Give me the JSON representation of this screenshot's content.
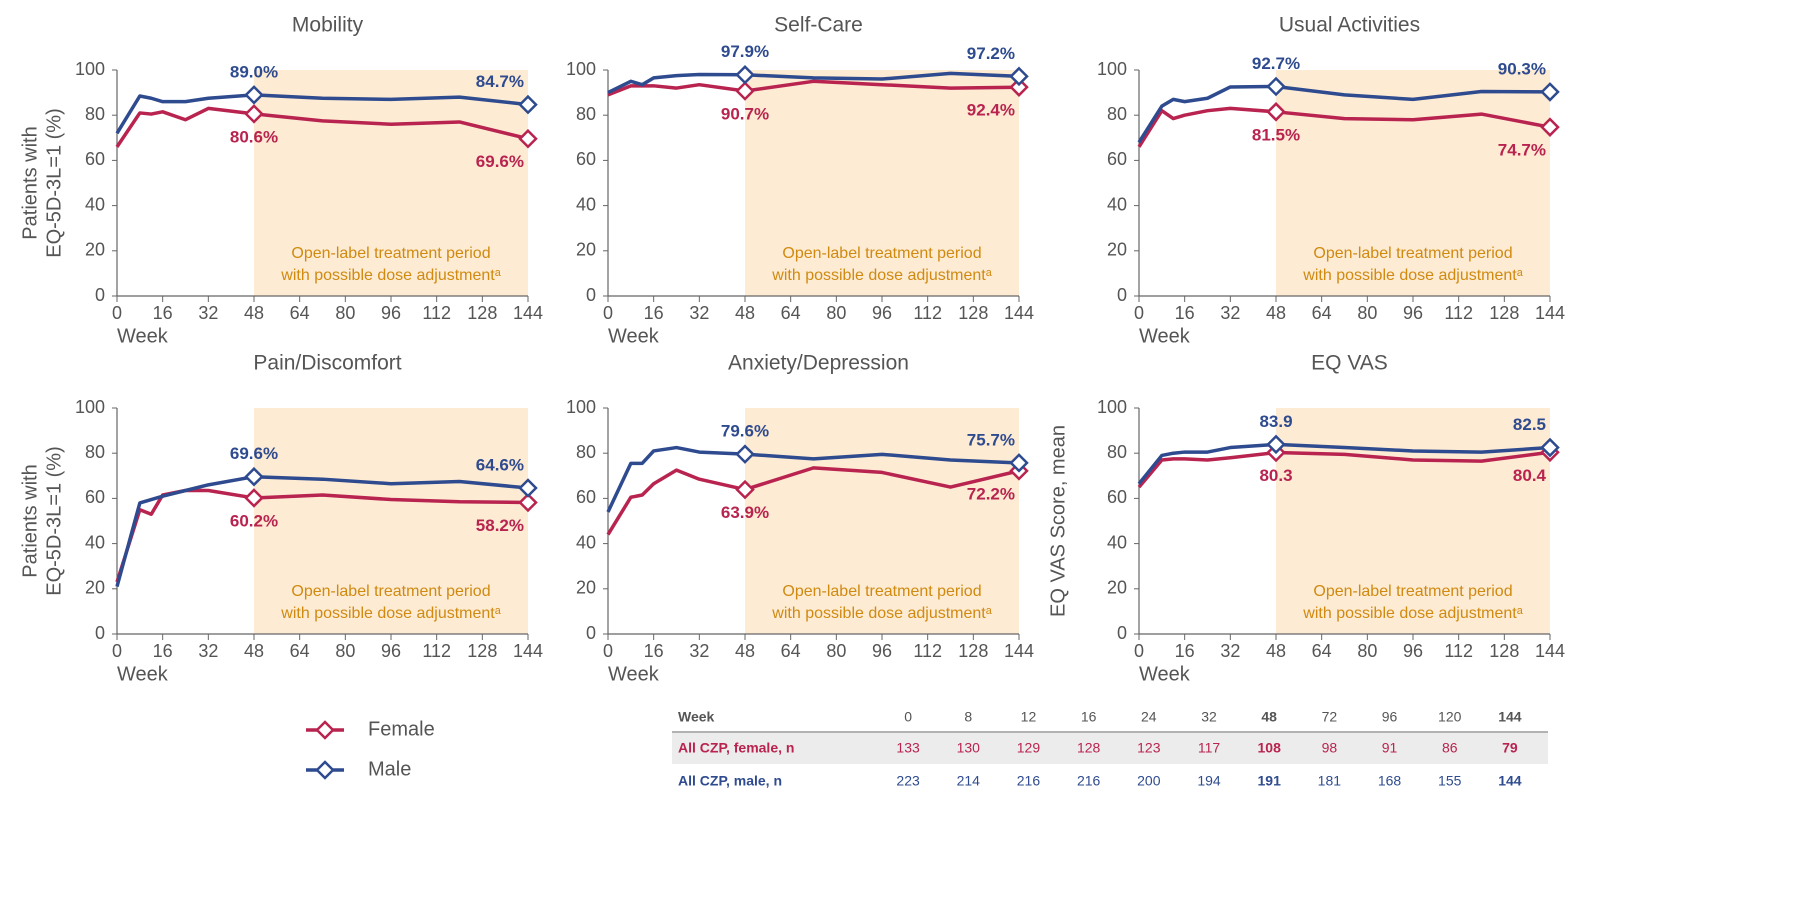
{
  "chart_data": [
    {
      "type": "line",
      "title": "Mobility",
      "xlabel": "Week",
      "ylabel": [
        "Patients with",
        "EQ-5D-3L=1 (%)"
      ],
      "x": [
        0,
        8,
        12,
        16,
        24,
        32,
        48,
        72,
        96,
        120,
        144
      ],
      "xlim": [
        0,
        144
      ],
      "xticks": [
        0,
        16,
        32,
        48,
        64,
        80,
        96,
        112,
        128,
        144
      ],
      "ylim": [
        0,
        100
      ],
      "yticks": [
        0,
        20,
        40,
        60,
        80,
        100
      ],
      "shade": {
        "x": [
          48,
          144
        ],
        "color": "#fdebd3"
      },
      "annotation": [
        "Open-label treatment period",
        "with possible dose adjustmentᵃ"
      ],
      "series": [
        {
          "name": "Female",
          "color": "#b8244f",
          "values": [
            66,
            81,
            80.5,
            81.5,
            78,
            83,
            80.6,
            77.5,
            76,
            77,
            69.6
          ],
          "value_labels": [
            null,
            null,
            null,
            null,
            null,
            null,
            "80.6%",
            null,
            null,
            null,
            "69.6%"
          ]
        },
        {
          "name": "Male",
          "color": "#2f4b8f",
          "values": [
            72,
            88.5,
            87.5,
            86,
            86,
            87.5,
            89.0,
            87.5,
            87,
            88,
            84.7
          ],
          "value_labels": [
            null,
            null,
            null,
            null,
            null,
            null,
            "89.0%",
            null,
            null,
            null,
            "84.7%"
          ]
        }
      ]
    },
    {
      "type": "line",
      "title": "Self-Care",
      "xlabel": "Week",
      "x": [
        0,
        8,
        12,
        16,
        24,
        32,
        48,
        72,
        96,
        120,
        144
      ],
      "xlim": [
        0,
        144
      ],
      "xticks": [
        0,
        16,
        32,
        48,
        64,
        80,
        96,
        112,
        128,
        144
      ],
      "ylim": [
        0,
        100
      ],
      "yticks": [
        0,
        20,
        40,
        60,
        80,
        100
      ],
      "shade": {
        "x": [
          48,
          144
        ],
        "color": "#fdebd3"
      },
      "annotation": [
        "Open-label treatment period",
        "with possible dose adjustmentᵃ"
      ],
      "series": [
        {
          "name": "Female",
          "color": "#b8244f",
          "values": [
            89,
            93,
            93,
            93,
            92,
            93.5,
            90.7,
            95,
            93.5,
            92,
            92.4
          ],
          "value_labels": [
            null,
            null,
            null,
            null,
            null,
            null,
            "90.7%",
            null,
            null,
            null,
            "92.4%"
          ]
        },
        {
          "name": "Male",
          "color": "#2f4b8f",
          "values": [
            90,
            95,
            93.5,
            96.5,
            97.5,
            98,
            97.9,
            96.5,
            96,
            98.5,
            97.2
          ],
          "value_labels": [
            null,
            null,
            null,
            null,
            null,
            null,
            "97.9%",
            null,
            null,
            null,
            "97.2%"
          ]
        }
      ]
    },
    {
      "type": "line",
      "title": "Usual Activities",
      "xlabel": "Week",
      "x": [
        0,
        8,
        12,
        16,
        24,
        32,
        48,
        72,
        96,
        120,
        144
      ],
      "xlim": [
        0,
        144
      ],
      "xticks": [
        0,
        16,
        32,
        48,
        64,
        80,
        96,
        112,
        128,
        144
      ],
      "ylim": [
        0,
        100
      ],
      "yticks": [
        0,
        20,
        40,
        60,
        80,
        100
      ],
      "shade": {
        "x": [
          48,
          144
        ],
        "color": "#fdebd3"
      },
      "annotation": [
        "Open-label treatment period",
        "with possible dose adjustmentᵃ"
      ],
      "series": [
        {
          "name": "Female",
          "color": "#b8244f",
          "values": [
            66,
            82,
            78.5,
            80,
            82,
            83,
            81.5,
            78.5,
            78,
            80.5,
            74.7
          ],
          "value_labels": [
            null,
            null,
            null,
            null,
            null,
            null,
            "81.5%",
            null,
            null,
            null,
            "74.7%"
          ]
        },
        {
          "name": "Male",
          "color": "#2f4b8f",
          "values": [
            68,
            84,
            87,
            86,
            87.5,
            92.5,
            92.7,
            89,
            87,
            90.5,
            90.3
          ],
          "value_labels": [
            null,
            null,
            null,
            null,
            null,
            null,
            "92.7%",
            null,
            null,
            null,
            "90.3%"
          ]
        }
      ]
    },
    {
      "type": "line",
      "title": "Pain/Discomfort",
      "xlabel": "Week",
      "ylabel": [
        "Patients with",
        "EQ-5D-3L=1 (%)"
      ],
      "x": [
        0,
        8,
        12,
        16,
        24,
        32,
        48,
        72,
        96,
        120,
        144
      ],
      "xlim": [
        0,
        144
      ],
      "xticks": [
        0,
        16,
        32,
        48,
        64,
        80,
        96,
        112,
        128,
        144
      ],
      "ylim": [
        0,
        100
      ],
      "yticks": [
        0,
        20,
        40,
        60,
        80,
        100
      ],
      "shade": {
        "x": [
          48,
          144
        ],
        "color": "#fdebd3"
      },
      "annotation": [
        "Open-label treatment period",
        "with possible dose adjustmentᵃ"
      ],
      "series": [
        {
          "name": "Female",
          "color": "#b8244f",
          "values": [
            23,
            55,
            53,
            61.5,
            63.5,
            63.5,
            60.2,
            61.5,
            59.5,
            58.5,
            58.2
          ],
          "value_labels": [
            null,
            null,
            null,
            null,
            null,
            null,
            "60.2%",
            null,
            null,
            null,
            "58.2%"
          ]
        },
        {
          "name": "Male",
          "color": "#2f4b8f",
          "values": [
            21,
            58,
            59.5,
            61,
            63.5,
            66,
            69.6,
            68.5,
            66.5,
            67.5,
            64.6
          ],
          "value_labels": [
            null,
            null,
            null,
            null,
            null,
            null,
            "69.6%",
            null,
            null,
            null,
            "64.6%"
          ]
        }
      ]
    },
    {
      "type": "line",
      "title": "Anxiety/Depression",
      "xlabel": "Week",
      "x": [
        0,
        8,
        12,
        16,
        24,
        32,
        48,
        72,
        96,
        120,
        144
      ],
      "xlim": [
        0,
        144
      ],
      "xticks": [
        0,
        16,
        32,
        48,
        64,
        80,
        96,
        112,
        128,
        144
      ],
      "ylim": [
        0,
        100
      ],
      "yticks": [
        0,
        20,
        40,
        60,
        80,
        100
      ],
      "shade": {
        "x": [
          48,
          144
        ],
        "color": "#fdebd3"
      },
      "annotation": [
        "Open-label treatment period",
        "with possible dose adjustmentᵃ"
      ],
      "series": [
        {
          "name": "Female",
          "color": "#b8244f",
          "values": [
            44,
            60.5,
            61.5,
            66.5,
            72.5,
            68.5,
            63.9,
            73.5,
            71.5,
            65,
            72.2
          ],
          "value_labels": [
            null,
            null,
            null,
            null,
            null,
            null,
            "63.9%",
            null,
            null,
            null,
            "72.2%"
          ]
        },
        {
          "name": "Male",
          "color": "#2f4b8f",
          "values": [
            54,
            75.5,
            75.5,
            81,
            82.5,
            80.5,
            79.6,
            77.5,
            79.5,
            77,
            75.7
          ],
          "value_labels": [
            null,
            null,
            null,
            null,
            null,
            null,
            "79.6%",
            null,
            null,
            null,
            "75.7%"
          ]
        }
      ]
    },
    {
      "type": "line",
      "title": "EQ VAS",
      "xlabel": "Week",
      "ylabel": [
        "EQ VAS Score, mean"
      ],
      "x": [
        0,
        8,
        12,
        16,
        24,
        32,
        48,
        72,
        96,
        120,
        144
      ],
      "xlim": [
        0,
        144
      ],
      "xticks": [
        0,
        16,
        32,
        48,
        64,
        80,
        96,
        112,
        128,
        144
      ],
      "ylim": [
        0,
        100
      ],
      "yticks": [
        0,
        20,
        40,
        60,
        80,
        100
      ],
      "shade": {
        "x": [
          48,
          144
        ],
        "color": "#fdebd3"
      },
      "annotation": [
        "Open-label treatment period",
        "with possible dose adjustmentᵃ"
      ],
      "series": [
        {
          "name": "Female",
          "color": "#b8244f",
          "values": [
            65,
            77,
            77.5,
            77.5,
            77,
            78,
            80.3,
            79.5,
            77,
            76.5,
            80.4
          ],
          "value_labels": [
            null,
            null,
            null,
            null,
            null,
            null,
            "80.3",
            null,
            null,
            null,
            "80.4"
          ]
        },
        {
          "name": "Male",
          "color": "#2f4b8f",
          "values": [
            66.5,
            79,
            80,
            80.5,
            80.5,
            82.5,
            83.9,
            82.5,
            81,
            80.5,
            82.5
          ],
          "value_labels": [
            null,
            null,
            null,
            null,
            null,
            null,
            "83.9",
            null,
            null,
            null,
            "82.5"
          ]
        }
      ]
    }
  ],
  "table": {
    "columns": [
      "Week",
      0,
      8,
      12,
      16,
      24,
      32,
      48,
      72,
      96,
      120,
      144
    ],
    "rows": [
      [
        "All CZP, female, n",
        133,
        130,
        129,
        128,
        123,
        117,
        108,
        98,
        91,
        86,
        79
      ],
      [
        "All CZP, male, n",
        223,
        214,
        216,
        216,
        200,
        194,
        191,
        181,
        168,
        155,
        144
      ]
    ]
  }
}
